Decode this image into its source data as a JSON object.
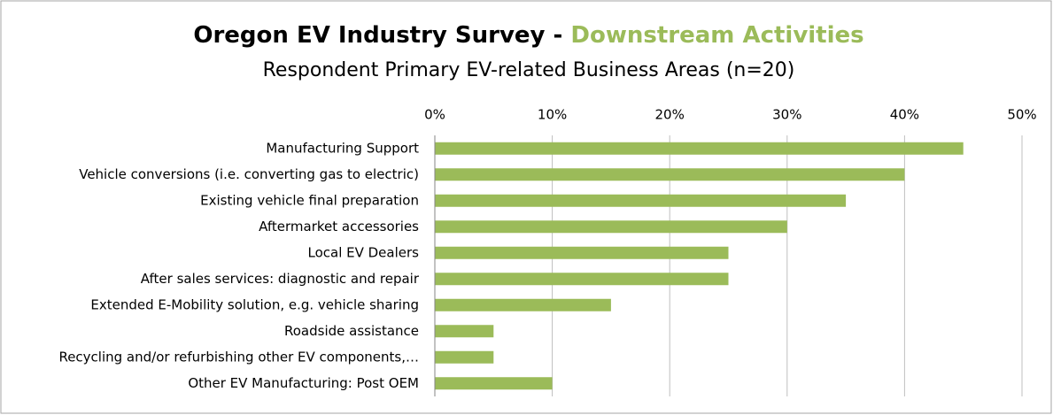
{
  "chart_data": {
    "type": "bar",
    "orientation": "horizontal",
    "title": "Oregon EV Industry Survey -",
    "title_highlight": "Downstream Activities",
    "subtitle": "Respondent  Primary EV-related Business Areas (n=20)",
    "categories": [
      "Manufacturing Support",
      "Vehicle conversions (i.e. converting gas to electric)",
      "Existing vehicle final preparation",
      "Aftermarket accessories",
      "Local EV Dealers",
      "After sales services: diagnostic and repair",
      "Extended E-Mobility solution, e.g. vehicle sharing",
      "Roadside assistance",
      "Recycling and/or refurbishing other EV components,…",
      "Other EV Manufacturing: Post OEM"
    ],
    "values": [
      45,
      40,
      35,
      30,
      25,
      25,
      15,
      5,
      5,
      10
    ],
    "color": "#9bbb59",
    "highlight_color": "#9bbb59",
    "xlim": [
      0,
      50
    ],
    "xticks": [
      {
        "value": 0,
        "label": "0%"
      },
      {
        "value": 10,
        "label": "10%"
      },
      {
        "value": 20,
        "label": "20%"
      },
      {
        "value": 30,
        "label": "30%"
      },
      {
        "value": 40,
        "label": "40%"
      },
      {
        "value": 50,
        "label": "50%"
      }
    ],
    "grid": true
  }
}
